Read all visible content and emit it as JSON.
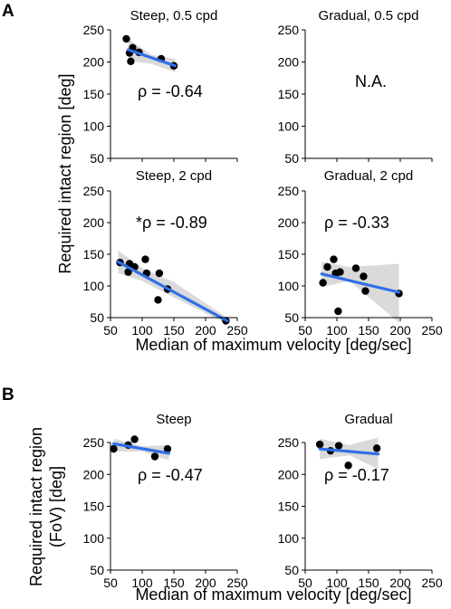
{
  "sections": [
    {
      "letter": "A",
      "ylabel": "Required intact region [deg]",
      "xlabel": "Median of maximum velocity [deg/sec]"
    },
    {
      "letter": "B",
      "ylabel_lines": [
        "Required intact region",
        "(FoV) [deg]"
      ],
      "xlabel": "Median of maximum velocity [deg/sec]"
    }
  ],
  "colors": {
    "fit_line": "#2f6fe8",
    "confidence_band": "#d3d3d3",
    "points": "#000000"
  },
  "chart_data": [
    {
      "type": "scatter",
      "title": "Steep, 0.5 cpd",
      "annotation": "ρ = -0.64",
      "xlim": [
        50,
        250
      ],
      "ylim": [
        50,
        250
      ],
      "xticks": [
        50,
        100,
        150,
        200,
        250
      ],
      "yticks": [
        50,
        100,
        150,
        200,
        250
      ],
      "x_tick_labels_visible": false,
      "points": [
        {
          "x": 75,
          "y": 236
        },
        {
          "x": 80,
          "y": 214
        },
        {
          "x": 82,
          "y": 201
        },
        {
          "x": 85,
          "y": 222
        },
        {
          "x": 95,
          "y": 215
        },
        {
          "x": 130,
          "y": 205
        },
        {
          "x": 150,
          "y": 194
        }
      ],
      "fit": {
        "x": [
          78,
          152
        ],
        "y": [
          219,
          194
        ]
      },
      "band": {
        "x": [
          78,
          115,
          152
        ],
        "upper": [
          236,
          211,
          205
        ],
        "lower": [
          202,
          197,
          184
        ]
      }
    },
    {
      "type": "scatter",
      "title": "Gradual, 0.5 cpd",
      "annotation": "N.A.",
      "xlim": [
        50,
        250
      ],
      "ylim": [
        50,
        250
      ],
      "xticks": [
        50,
        100,
        150,
        200,
        250
      ],
      "yticks": [
        50,
        100,
        150,
        200,
        250
      ],
      "x_tick_labels_visible": false,
      "points": [],
      "fit": null,
      "band": null
    },
    {
      "type": "scatter",
      "title": "Steep, 2 cpd",
      "annotation": "*ρ = -0.89",
      "xlim": [
        50,
        250
      ],
      "ylim": [
        50,
        250
      ],
      "xticks": [
        50,
        100,
        150,
        200,
        250
      ],
      "yticks": [
        50,
        100,
        150,
        200,
        250
      ],
      "x_tick_labels_visible": true,
      "points": [
        {
          "x": 65,
          "y": 137
        },
        {
          "x": 78,
          "y": 122
        },
        {
          "x": 80,
          "y": 135
        },
        {
          "x": 88,
          "y": 130
        },
        {
          "x": 105,
          "y": 142
        },
        {
          "x": 107,
          "y": 120
        },
        {
          "x": 125,
          "y": 78
        },
        {
          "x": 127,
          "y": 120
        },
        {
          "x": 140,
          "y": 95
        },
        {
          "x": 232,
          "y": 45
        }
      ],
      "fit": {
        "x": [
          62,
          234
        ],
        "y": [
          138,
          45
        ]
      },
      "band": {
        "x": [
          62,
          100,
          150,
          234
        ],
        "upper": [
          156,
          128,
          106,
          50
        ],
        "lower": [
          120,
          108,
          82,
          40
        ]
      }
    },
    {
      "type": "scatter",
      "title": "Gradual, 2 cpd",
      "annotation": "ρ = -0.33",
      "xlim": [
        50,
        250
      ],
      "ylim": [
        50,
        250
      ],
      "xticks": [
        50,
        100,
        150,
        200,
        250
      ],
      "yticks": [
        50,
        100,
        150,
        200,
        250
      ],
      "x_tick_labels_visible": true,
      "points": [
        {
          "x": 78,
          "y": 105
        },
        {
          "x": 85,
          "y": 130
        },
        {
          "x": 95,
          "y": 142
        },
        {
          "x": 98,
          "y": 120
        },
        {
          "x": 102,
          "y": 60
        },
        {
          "x": 105,
          "y": 122
        },
        {
          "x": 130,
          "y": 128
        },
        {
          "x": 142,
          "y": 115
        },
        {
          "x": 145,
          "y": 92
        },
        {
          "x": 198,
          "y": 88
        }
      ],
      "fit": {
        "x": [
          76,
          198
        ],
        "y": [
          119,
          90
        ]
      },
      "band": {
        "x": [
          76,
          120,
          198
        ],
        "upper": [
          138,
          130,
          135
        ],
        "lower": [
          98,
          108,
          42
        ]
      }
    },
    {
      "type": "scatter",
      "title": "Steep",
      "annotation": "ρ = -0.47",
      "xlim": [
        50,
        250
      ],
      "ylim": [
        50,
        250
      ],
      "xticks": [
        50,
        100,
        150,
        200,
        250
      ],
      "yticks": [
        50,
        100,
        150,
        200,
        250
      ],
      "x_tick_labels_visible": true,
      "points": [
        {
          "x": 55,
          "y": 240
        },
        {
          "x": 78,
          "y": 246
        },
        {
          "x": 88,
          "y": 255
        },
        {
          "x": 120,
          "y": 228
        },
        {
          "x": 140,
          "y": 240
        }
      ],
      "fit": {
        "x": [
          55,
          142
        ],
        "y": [
          248,
          233
        ]
      },
      "band": {
        "x": [
          55,
          100,
          142
        ],
        "upper": [
          256,
          244,
          246
        ],
        "lower": [
          236,
          236,
          222
        ]
      }
    },
    {
      "type": "scatter",
      "title": "Gradual",
      "annotation": "ρ = -0.17",
      "xlim": [
        50,
        250
      ],
      "ylim": [
        50,
        250
      ],
      "xticks": [
        50,
        100,
        150,
        200,
        250
      ],
      "yticks": [
        50,
        100,
        150,
        200,
        250
      ],
      "x_tick_labels_visible": true,
      "points": [
        {
          "x": 73,
          "y": 247
        },
        {
          "x": 90,
          "y": 237
        },
        {
          "x": 103,
          "y": 245
        },
        {
          "x": 118,
          "y": 214
        },
        {
          "x": 163,
          "y": 241
        }
      ],
      "fit": {
        "x": [
          73,
          165
        ],
        "y": [
          240,
          232
        ]
      },
      "band": {
        "x": [
          73,
          120,
          165
        ],
        "upper": [
          256,
          246,
          258
        ],
        "lower": [
          224,
          230,
          208
        ]
      }
    }
  ]
}
